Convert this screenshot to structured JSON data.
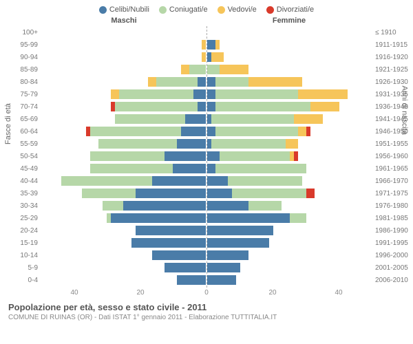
{
  "legend": [
    {
      "label": "Celibi/Nubili",
      "color": "#4a7ca8"
    },
    {
      "label": "Coniugati/e",
      "color": "#b6d7a8"
    },
    {
      "label": "Vedovi/e",
      "color": "#f6c55a"
    },
    {
      "label": "Divorziati/e",
      "color": "#d93a2b"
    }
  ],
  "header_male": "Maschi",
  "header_female": "Femmine",
  "ylabel_left": "Fasce di età",
  "ylabel_right": "Anni di nascita",
  "title": "Popolazione per età, sesso e stato civile - 2011",
  "subtitle": "COMUNE DI RUINAS (OR) - Dati ISTAT 1° gennaio 2011 - Elaborazione TUTTITALIA.IT",
  "axis_ticks": [
    "40",
    "20",
    "0",
    "20",
    "40"
  ],
  "max_value": 40,
  "colors": {
    "celibi": "#4a7ca8",
    "coniugati": "#b6d7a8",
    "vedovi": "#f6c55a",
    "divorziati": "#d93a2b",
    "grid": "#aaaaaa",
    "bg": "#ffffff"
  },
  "rows": [
    {
      "age": "100+",
      "birth": "≤ 1910",
      "m": {
        "c": 0,
        "co": 0,
        "v": 0,
        "d": 0
      },
      "f": {
        "c": 0,
        "co": 0,
        "v": 0,
        "d": 0
      }
    },
    {
      "age": "95-99",
      "birth": "1911-1915",
      "m": {
        "c": 0,
        "co": 0,
        "v": 1,
        "d": 0
      },
      "f": {
        "c": 2,
        "co": 0,
        "v": 1,
        "d": 0
      }
    },
    {
      "age": "90-94",
      "birth": "1916-1920",
      "m": {
        "c": 0,
        "co": 0,
        "v": 1,
        "d": 0
      },
      "f": {
        "c": 1,
        "co": 0,
        "v": 3,
        "d": 0
      }
    },
    {
      "age": "85-89",
      "birth": "1921-1925",
      "m": {
        "c": 0,
        "co": 4,
        "v": 2,
        "d": 0
      },
      "f": {
        "c": 0,
        "co": 3,
        "v": 7,
        "d": 0
      }
    },
    {
      "age": "80-84",
      "birth": "1926-1930",
      "m": {
        "c": 2,
        "co": 10,
        "v": 2,
        "d": 0
      },
      "f": {
        "c": 2,
        "co": 8,
        "v": 13,
        "d": 0
      }
    },
    {
      "age": "75-79",
      "birth": "1931-1935",
      "m": {
        "c": 3,
        "co": 18,
        "v": 2,
        "d": 0
      },
      "f": {
        "c": 2,
        "co": 20,
        "v": 12,
        "d": 0
      }
    },
    {
      "age": "70-74",
      "birth": "1936-1940",
      "m": {
        "c": 2,
        "co": 20,
        "v": 0,
        "d": 1
      },
      "f": {
        "c": 2,
        "co": 23,
        "v": 7,
        "d": 0
      }
    },
    {
      "age": "65-69",
      "birth": "1941-1945",
      "m": {
        "c": 5,
        "co": 17,
        "v": 0,
        "d": 0
      },
      "f": {
        "c": 1,
        "co": 20,
        "v": 7,
        "d": 0
      }
    },
    {
      "age": "60-64",
      "birth": "1946-1950",
      "m": {
        "c": 6,
        "co": 22,
        "v": 0,
        "d": 1
      },
      "f": {
        "c": 2,
        "co": 20,
        "v": 2,
        "d": 1
      }
    },
    {
      "age": "55-59",
      "birth": "1951-1955",
      "m": {
        "c": 7,
        "co": 19,
        "v": 0,
        "d": 0
      },
      "f": {
        "c": 1,
        "co": 18,
        "v": 3,
        "d": 0
      }
    },
    {
      "age": "50-54",
      "birth": "1956-1960",
      "m": {
        "c": 10,
        "co": 18,
        "v": 0,
        "d": 0
      },
      "f": {
        "c": 3,
        "co": 17,
        "v": 1,
        "d": 1
      }
    },
    {
      "age": "45-49",
      "birth": "1961-1965",
      "m": {
        "c": 8,
        "co": 20,
        "v": 0,
        "d": 0
      },
      "f": {
        "c": 2,
        "co": 22,
        "v": 0,
        "d": 0
      }
    },
    {
      "age": "40-44",
      "birth": "1966-1970",
      "m": {
        "c": 13,
        "co": 22,
        "v": 0,
        "d": 0
      },
      "f": {
        "c": 5,
        "co": 18,
        "v": 0,
        "d": 0
      }
    },
    {
      "age": "35-39",
      "birth": "1971-1975",
      "m": {
        "c": 17,
        "co": 13,
        "v": 0,
        "d": 0
      },
      "f": {
        "c": 6,
        "co": 18,
        "v": 0,
        "d": 2
      }
    },
    {
      "age": "30-34",
      "birth": "1976-1980",
      "m": {
        "c": 20,
        "co": 5,
        "v": 0,
        "d": 0
      },
      "f": {
        "c": 10,
        "co": 8,
        "v": 0,
        "d": 0
      }
    },
    {
      "age": "25-29",
      "birth": "1981-1985",
      "m": {
        "c": 23,
        "co": 1,
        "v": 0,
        "d": 0
      },
      "f": {
        "c": 20,
        "co": 4,
        "v": 0,
        "d": 0
      }
    },
    {
      "age": "20-24",
      "birth": "1986-1990",
      "m": {
        "c": 17,
        "co": 0,
        "v": 0,
        "d": 0
      },
      "f": {
        "c": 16,
        "co": 0,
        "v": 0,
        "d": 0
      }
    },
    {
      "age": "15-19",
      "birth": "1991-1995",
      "m": {
        "c": 18,
        "co": 0,
        "v": 0,
        "d": 0
      },
      "f": {
        "c": 15,
        "co": 0,
        "v": 0,
        "d": 0
      }
    },
    {
      "age": "10-14",
      "birth": "1996-2000",
      "m": {
        "c": 13,
        "co": 0,
        "v": 0,
        "d": 0
      },
      "f": {
        "c": 10,
        "co": 0,
        "v": 0,
        "d": 0
      }
    },
    {
      "age": "5-9",
      "birth": "2001-2005",
      "m": {
        "c": 10,
        "co": 0,
        "v": 0,
        "d": 0
      },
      "f": {
        "c": 8,
        "co": 0,
        "v": 0,
        "d": 0
      }
    },
    {
      "age": "0-4",
      "birth": "2006-2010",
      "m": {
        "c": 7,
        "co": 0,
        "v": 0,
        "d": 0
      },
      "f": {
        "c": 7,
        "co": 0,
        "v": 0,
        "d": 0
      }
    }
  ]
}
